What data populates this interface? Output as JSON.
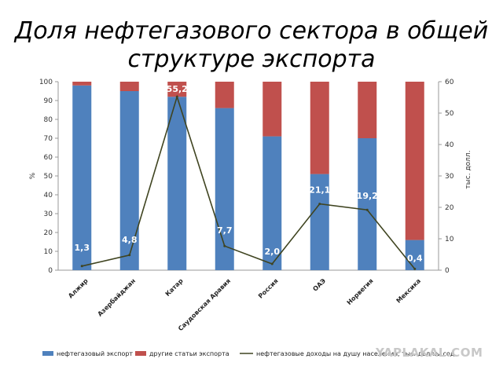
{
  "chart_data": {
    "type": "bar",
    "stacked": true,
    "title": "Доля нефтегазового сектора в общей структуре экспорта",
    "categories": [
      "Алжир",
      "Азербайджан",
      "Катар",
      "Саудовская Аравия",
      "Россия",
      "ОАЭ",
      "Норвегия",
      "Мексика"
    ],
    "series": [
      {
        "name": "нефтегазовый экспорт",
        "axis": "left",
        "color": "#4f81bd",
        "values": [
          98,
          95,
          92,
          86,
          71,
          51,
          70,
          16
        ]
      },
      {
        "name": "другие статьи экспорта",
        "axis": "left",
        "color": "#c0504d",
        "values": [
          2,
          5,
          8,
          14,
          29,
          49,
          30,
          84
        ]
      },
      {
        "name": "нефтегазовые доходы на душу населения, тыс. долл.ы.сод",
        "axis": "right",
        "type": "line",
        "color": "#3f4420",
        "values": [
          1.3,
          4.8,
          55.2,
          7.7,
          2.0,
          21.1,
          19.2,
          0.4
        ],
        "labels": [
          "1,3",
          "4,8",
          "55,2",
          "7,7",
          "2,0",
          "21,1",
          "19,2",
          "0,4"
        ]
      }
    ],
    "ylabel": "%",
    "ylim": [
      0,
      100
    ],
    "yticks": [
      0,
      10,
      20,
      30,
      40,
      50,
      60,
      70,
      80,
      90,
      100
    ],
    "y2label": "тыс. долл.",
    "y2lim": [
      0,
      60
    ],
    "y2ticks": [
      0,
      10,
      20,
      30,
      40,
      50,
      60
    ],
    "legend_position": "bottom",
    "grid": false
  },
  "watermark": "YAPLAKAL.COM"
}
